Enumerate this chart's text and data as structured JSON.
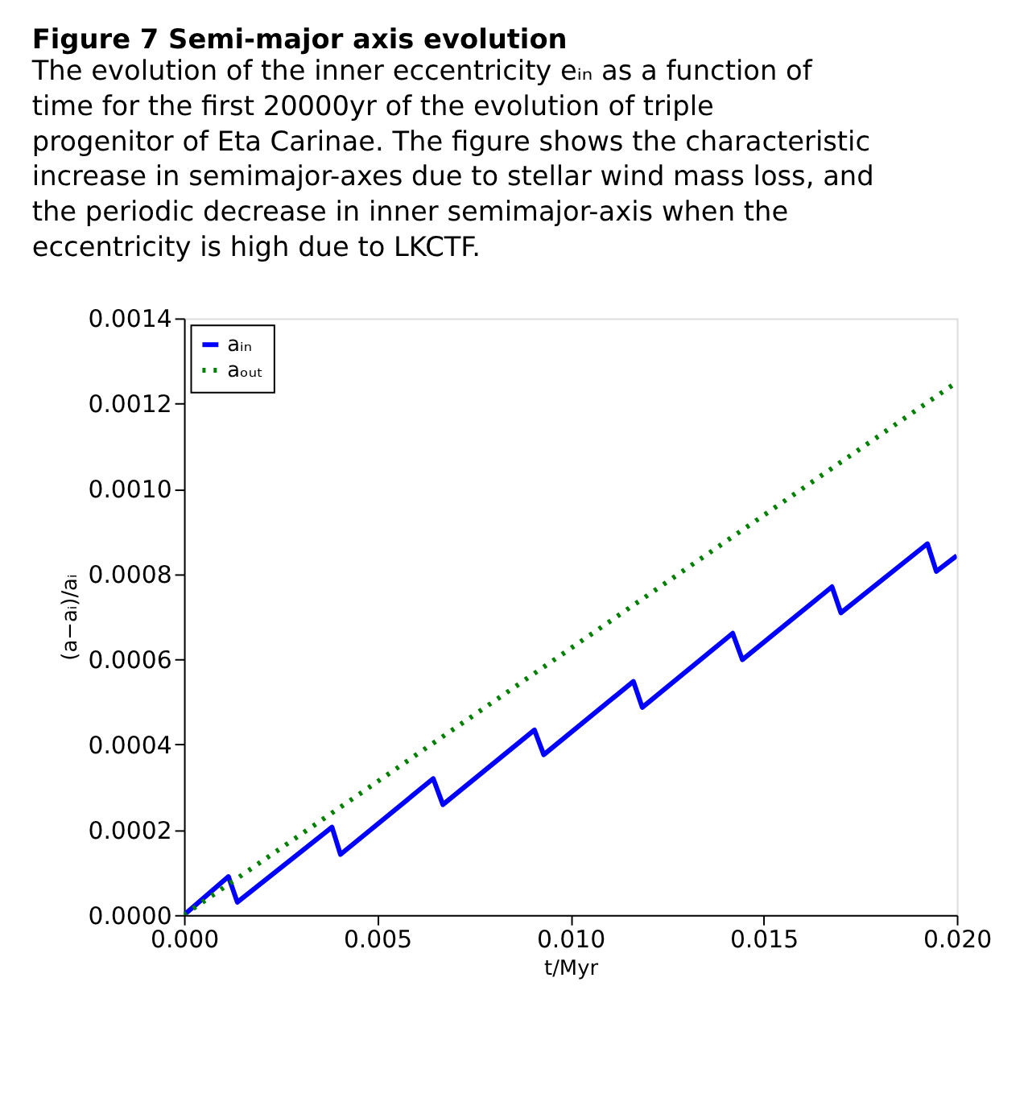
{
  "chart_data": {
    "type": "line",
    "title": "Figure 7 Semi-major axis evolution",
    "subtitle": "The evolution of the inner eccentricity eᵢₙ as a function of time for the first 20000yr of the evolution of triple progenitor of Eta Carinae. The figure shows the characteristic increase in semimajor-axes due to stellar wind mass loss, and the periodic decrease in inner semimajor-axis when the eccentricity is high due to LKCTF.",
    "xlabel": "t/Myr",
    "ylabel": "(a−aᵢ)/aᵢ",
    "series": [
      {
        "name": "aᵢₙ",
        "color": "#0000ff",
        "line_style": "solid",
        "x": [
          0,
          0.00115,
          0.00138,
          0.00383,
          0.00405,
          0.00645,
          0.0067,
          0.00907,
          0.00931,
          0.01163,
          0.01186,
          0.0142,
          0.01445,
          0.01677,
          0.017,
          0.01924,
          0.01947,
          0.02
        ],
        "values": [
          0,
          9e-05,
          3e-05,
          0.000206,
          0.000142,
          0.00032,
          0.000259,
          0.000434,
          0.000376,
          0.000548,
          0.000487,
          0.000661,
          0.000599,
          0.00077,
          0.000709,
          0.000871,
          0.000806,
          0.000843
        ]
      },
      {
        "name": "aₒᵤₜ",
        "color": "#008000",
        "line_style": "dotted",
        "x": [
          0,
          0.02
        ],
        "values": [
          0,
          0.00125
        ]
      }
    ],
    "xlim": [
      0,
      0.02
    ],
    "ylim": [
      0,
      0.0014
    ],
    "xticks": [
      {
        "value": 0,
        "label": "0.000"
      },
      {
        "value": 0.005,
        "label": "0.005"
      },
      {
        "value": 0.01,
        "label": "0.010"
      },
      {
        "value": 0.015,
        "label": "0.015"
      },
      {
        "value": 0.02,
        "label": "0.020"
      }
    ],
    "yticks": [
      {
        "value": 0,
        "label": "0.0000"
      },
      {
        "value": 0.0002,
        "label": "0.0002"
      },
      {
        "value": 0.0004,
        "label": "0.0004"
      },
      {
        "value": 0.0006,
        "label": "0.0006"
      },
      {
        "value": 0.0008,
        "label": "0.0008"
      },
      {
        "value": 0.001,
        "label": "0.0010"
      },
      {
        "value": 0.0012,
        "label": "0.0012"
      },
      {
        "value": 0.0014,
        "label": "0.0014"
      }
    ],
    "grid": false,
    "legend": "top left"
  }
}
